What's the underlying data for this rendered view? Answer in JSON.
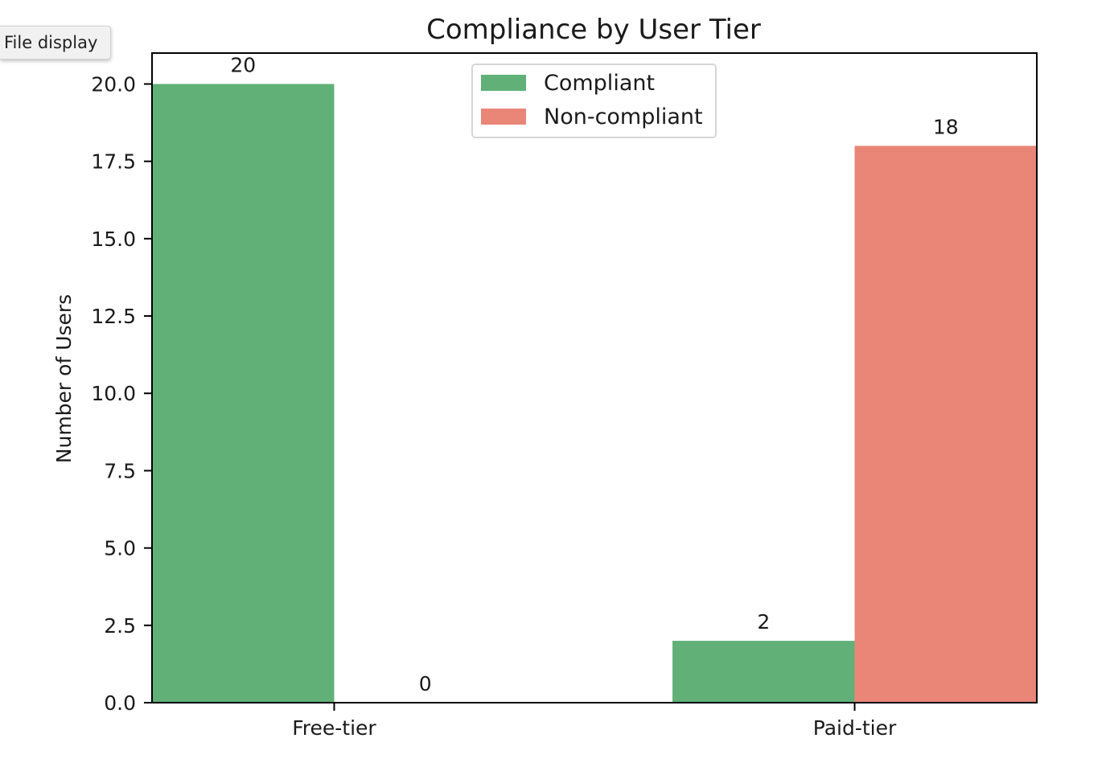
{
  "tooltip": {
    "label": "File display"
  },
  "chart_data": {
    "type": "bar",
    "title": "Compliance by User Tier",
    "xlabel": "",
    "ylabel": "Number of Users",
    "categories": [
      "Free-tier",
      "Paid-tier"
    ],
    "series": [
      {
        "name": "Compliant",
        "values": [
          20,
          2
        ],
        "color": "#60b077"
      },
      {
        "name": "Non-compliant",
        "values": [
          0,
          18
        ],
        "color": "#e98677"
      }
    ],
    "ylim": [
      0,
      21
    ],
    "yticks": [
      "0.0",
      "2.5",
      "5.0",
      "7.5",
      "10.0",
      "12.5",
      "15.0",
      "17.5",
      "20.0"
    ],
    "data_labels": [
      [
        "20",
        "2"
      ],
      [
        "0",
        "18"
      ]
    ],
    "legend_position": "top-center",
    "grid": false
  }
}
